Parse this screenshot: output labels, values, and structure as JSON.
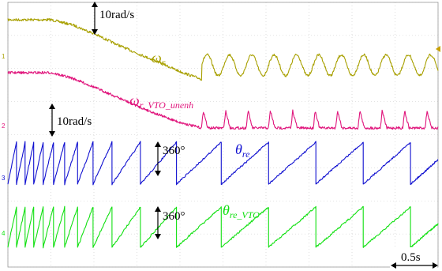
{
  "chart_data": {
    "type": "line",
    "title": "",
    "xlabel": "",
    "ylabel": "",
    "grid": true,
    "grid_divisions": {
      "x": 10,
      "y": 8
    },
    "x_unit": "s",
    "x_per_division": 0.5,
    "xlim": [
      0,
      5
    ],
    "series": [
      {
        "name": "ω_r",
        "label_main": "ω",
        "label_sub": "r",
        "color": "#a8a000",
        "channel_marker": "1",
        "x": [
          0,
          0.5,
          0.75,
          1.0,
          1.25,
          1.5,
          1.75,
          2.0,
          2.25,
          2.5
        ],
        "y": [
          1.0,
          1.0,
          0.92,
          0.78,
          0.62,
          0.47,
          0.33,
          0.18,
          0.06,
          0.0
        ],
        "oscillation_after_x": 2.25,
        "oscillation_period": 0.26,
        "oscillation_amplitude": 0.55
      },
      {
        "name": "ω_r_VTO_unenh",
        "label_main": "ω",
        "label_sub": "r_VTO_unenh",
        "color": "#e0157c",
        "channel_marker": "2",
        "x": [
          0,
          0.5,
          0.75,
          1.0,
          1.25,
          1.5,
          1.75,
          2.0,
          2.25,
          2.5
        ],
        "y": [
          1.0,
          1.0,
          0.9,
          0.74,
          0.57,
          0.4,
          0.24,
          0.1,
          0.0,
          0.0
        ],
        "oscillation_after_x": 2.25,
        "oscillation_period": 0.26,
        "oscillation_amplitude": 0.45
      },
      {
        "name": "θ_re",
        "label_main": "θ",
        "label_sub": "re",
        "color": "#1010d0",
        "channel_marker": "3",
        "sawtooth_periods": [
          0.1,
          0.1,
          0.1,
          0.11,
          0.12,
          0.13,
          0.15,
          0.18,
          0.22,
          0.33,
          0.42,
          0.52,
          0.55,
          0.55,
          0.55,
          0.55,
          0.55
        ]
      },
      {
        "name": "θ_re_VTO",
        "label_main": "θ",
        "label_sub": "re_VTO",
        "color": "#10e010",
        "channel_marker": "4",
        "sawtooth_periods": [
          0.1,
          0.1,
          0.1,
          0.11,
          0.12,
          0.13,
          0.15,
          0.18,
          0.22,
          0.33,
          0.42,
          0.52,
          0.55,
          0.55,
          0.55,
          0.55,
          0.55
        ]
      }
    ],
    "annotations": {
      "speed_scale_1": "10rad/s",
      "speed_scale_2": "10rad/s",
      "angle_scale_1": "360°",
      "angle_scale_2": "360°",
      "time_scale": "0.5s"
    }
  }
}
